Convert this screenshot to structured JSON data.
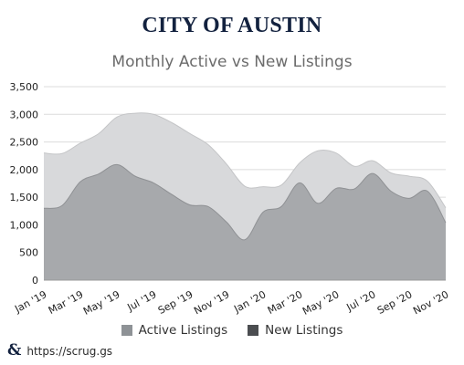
{
  "header": {
    "brand": "CITY OF AUSTIN"
  },
  "footer": {
    "logo_icon": "ampersand-logo-icon",
    "url": "https://scrug.gs"
  },
  "chart_data": {
    "type": "area",
    "title": "Monthly Active vs New Listings",
    "xlabel": "",
    "ylabel": "",
    "x": [
      "Jan '19",
      "Feb '19",
      "Mar '19",
      "Apr '19",
      "May '19",
      "Jun '19",
      "Jul '19",
      "Aug '19",
      "Sep '19",
      "Oct '19",
      "Nov '19",
      "Dec '19",
      "Jan '20",
      "Feb '20",
      "Mar '20",
      "Apr '20",
      "May '20",
      "Jun '20",
      "Jul '20",
      "Aug '20",
      "Sep '20",
      "Oct '20",
      "Nov '20"
    ],
    "x_tick_labels": [
      "Jan '19",
      "Mar '19",
      "May '19",
      "Jul '19",
      "Sep '19",
      "Nov '19",
      "Jan '20",
      "Mar '20",
      "May '20",
      "Jul '20",
      "Sep '20",
      "Nov '20"
    ],
    "ylim": [
      0,
      3500
    ],
    "y_ticks": [
      0,
      500,
      1000,
      1500,
      2000,
      2500,
      3000,
      3500
    ],
    "grid": true,
    "legend_position": "bottom",
    "series": [
      {
        "name": "Active Listings",
        "color": "#d8d9db",
        "legend_color": "#8e9296",
        "values": [
          2300,
          2290,
          2480,
          2650,
          2950,
          3020,
          3000,
          2850,
          2650,
          2450,
          2100,
          1700,
          1690,
          1720,
          2120,
          2340,
          2300,
          2060,
          2160,
          1940,
          1880,
          1790,
          1310
        ]
      },
      {
        "name": "New Listings",
        "color": "#a7a9ac",
        "legend_color": "#4b4d50",
        "values": [
          1300,
          1350,
          1780,
          1920,
          2090,
          1880,
          1760,
          1550,
          1360,
          1330,
          1050,
          730,
          1230,
          1330,
          1760,
          1390,
          1660,
          1650,
          1930,
          1610,
          1480,
          1610,
          1040
        ]
      }
    ]
  }
}
